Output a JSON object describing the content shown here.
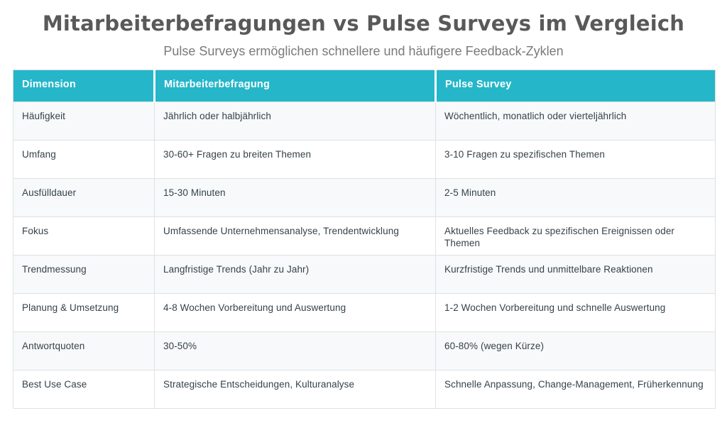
{
  "page": {
    "title": "Mitarbeiterbefragungen vs Pulse Surveys im Vergleich",
    "subtitle": "Pulse Surveys ermöglichen schnellere und häufigere Feedback-Zyklen"
  },
  "table": {
    "columns": [
      "Dimension",
      "Mitarbeiterbefragung",
      "Pulse Survey"
    ],
    "rows": [
      {
        "dimension": "Häufigkeit",
        "befragung": "Jährlich oder halbjährlich",
        "pulse": "Wöchentlich, monatlich oder vierteljährlich"
      },
      {
        "dimension": "Umfang",
        "befragung": "30-60+ Fragen zu breiten Themen",
        "pulse": "3-10 Fragen zu spezifischen Themen"
      },
      {
        "dimension": "Ausfülldauer",
        "befragung": "15-30 Minuten",
        "pulse": "2-5 Minuten"
      },
      {
        "dimension": "Fokus",
        "befragung": "Umfassende Unternehmensanalyse, Trendentwicklung",
        "pulse": "Aktuelles Feedback zu spezifischen Ereignissen oder Themen"
      },
      {
        "dimension": "Trendmessung",
        "befragung": "Langfristige Trends (Jahr zu Jahr)",
        "pulse": "Kurzfristige Trends und unmittelbare Reaktionen"
      },
      {
        "dimension": "Planung & Umsetzung",
        "befragung": "4-8 Wochen Vorbereitung und Auswertung",
        "pulse": "1-2 Wochen Vorbereitung und schnelle Auswertung"
      },
      {
        "dimension": "Antwortquoten",
        "befragung": "30-50%",
        "pulse": "60-80% (wegen Kürze)"
      },
      {
        "dimension": "Best Use Case",
        "befragung": "Strategische Entscheidungen, Kulturanalyse",
        "pulse": "Schnelle Anpassung, Change-Management, Früherkennung"
      }
    ]
  },
  "colors": {
    "header_bg": "#25b6c9",
    "header_text": "#ffffff",
    "row_odd_bg": "#f7f9fa",
    "row_even_bg": "#ffffff",
    "border": "#dfe2e4",
    "cell_text": "#35424a",
    "title_text": "#595959",
    "subtitle_text": "#7a7a7a"
  }
}
